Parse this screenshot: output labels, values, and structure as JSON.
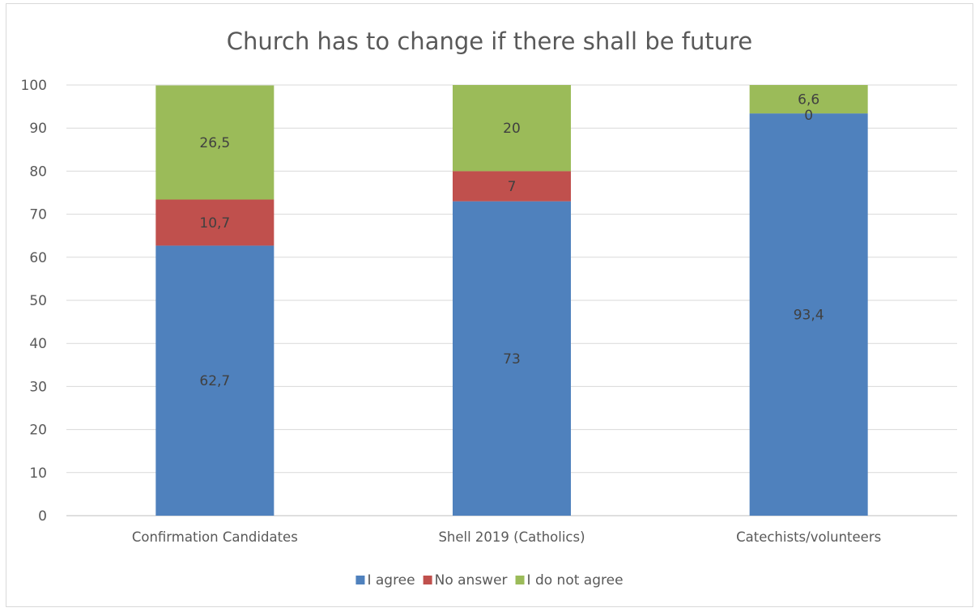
{
  "chart_data": {
    "type": "bar",
    "stacked": true,
    "title": "Church has to change if there shall be future",
    "xlabel": "",
    "ylabel": "",
    "categories": [
      "Confirmation Candidates",
      "Shell 2019 (Catholics)",
      "Catechists/volunteers"
    ],
    "ylim": [
      0,
      100
    ],
    "yticks": [
      0,
      10,
      20,
      30,
      40,
      50,
      60,
      70,
      80,
      90,
      100
    ],
    "grid": true,
    "legend_position": "bottom",
    "series": [
      {
        "name": "I agree",
        "color": "#4f81bd",
        "values": [
          62.7,
          73,
          93.4
        ],
        "labels": [
          "62,7",
          "73",
          "93,4"
        ]
      },
      {
        "name": "No answer",
        "color": "#c0504d",
        "values": [
          10.7,
          7,
          0
        ],
        "labels": [
          "10,7",
          "7",
          "0"
        ]
      },
      {
        "name": "I do not agree",
        "color": "#9bbb59",
        "values": [
          26.5,
          20,
          6.6
        ],
        "labels": [
          "26,5",
          "20",
          "6,6"
        ]
      }
    ]
  }
}
